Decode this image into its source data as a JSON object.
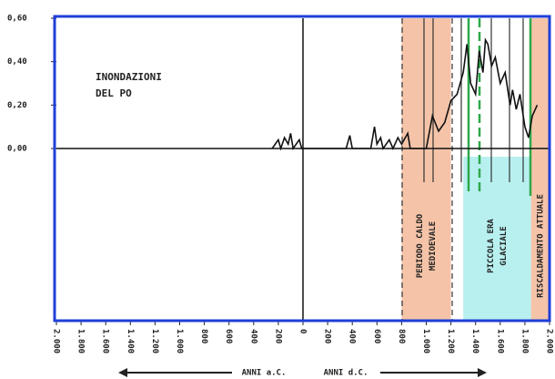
{
  "chart_data": {
    "type": "line",
    "title": [
      "INONDAZIONI",
      "DEL PO"
    ],
    "x": [
      -250,
      -200,
      -180,
      -150,
      -120,
      -100,
      -80,
      -30,
      -10,
      350,
      380,
      400,
      550,
      580,
      600,
      630,
      650,
      700,
      730,
      770,
      800,
      850,
      870,
      1000,
      1050,
      1100,
      1150,
      1200,
      1250,
      1300,
      1330,
      1360,
      1400,
      1430,
      1460,
      1480,
      1500,
      1530,
      1560,
      1600,
      1640,
      1680,
      1700,
      1730,
      1760,
      1800,
      1830,
      1860,
      1900
    ],
    "series": [
      {
        "color": "#111",
        "values": [
          0,
          0.04,
          0,
          0.05,
          0.02,
          0.07,
          0,
          0.04,
          0,
          0,
          0.06,
          0,
          0,
          0.1,
          0.02,
          0.05,
          0,
          0.04,
          0,
          0.05,
          0.02,
          0.07,
          0,
          0,
          0.15,
          0.08,
          0.12,
          0.22,
          0.25,
          0.35,
          0.48,
          0.3,
          0.25,
          0.45,
          0.35,
          0.5,
          0.48,
          0.38,
          0.42,
          0.3,
          0.35,
          0.2,
          0.27,
          0.18,
          0.25,
          0.1,
          0.05,
          0.15,
          0.2
        ]
      }
    ],
    "periods": [
      {
        "label": [
          "PERIODO CALDO",
          "MEDIOEVALE"
        ],
        "start": 800,
        "end": 1200,
        "color": "#f5c4a8"
      },
      {
        "label": [
          "PICCOLA ERA",
          "GLACIALE"
        ],
        "start": 1300,
        "end": 1850,
        "color": "#b8f0f0"
      },
      {
        "label": [
          "RISCALDAMENTO ATTUALE"
        ],
        "start": 1850,
        "end": 2000,
        "color": "#f5c4a8"
      }
    ],
    "xlim": [
      -2000,
      2000
    ],
    "xticks": [
      {
        "value": -2000,
        "label": "2.000"
      },
      {
        "value": -1800,
        "label": "1.800"
      },
      {
        "value": -1600,
        "label": "1.600"
      },
      {
        "value": -1400,
        "label": "1.400"
      },
      {
        "value": -1200,
        "label": "1.200"
      },
      {
        "value": -1000,
        "label": "1.000"
      },
      {
        "value": -800,
        "label": "800"
      },
      {
        "value": -600,
        "label": "600"
      },
      {
        "value": -400,
        "label": "400"
      },
      {
        "value": -200,
        "label": "200"
      },
      0,
      200,
      400,
      600,
      800,
      {
        "value": 1000,
        "label": "1.000"
      },
      {
        "value": 1200,
        "label": "1.200"
      },
      {
        "value": 1400,
        "label": "1.400"
      },
      {
        "value": 1600,
        "label": "1.600"
      },
      {
        "value": 1800,
        "label": "1.800"
      },
      {
        "value": 2000,
        "label": "2.000"
      }
    ],
    "ylim": [
      0,
      0.6
    ],
    "yticks": [
      {
        "value": 0,
        "label": "0,00"
      },
      {
        "value": 0.2,
        "label": "0,20"
      },
      {
        "value": 0.4,
        "label": "0,40"
      },
      {
        "value": 0.6,
        "label": "0,60"
      }
    ],
    "xlabel_left": "ANNI a.C.",
    "xlabel_right": "ANNI d.C."
  }
}
